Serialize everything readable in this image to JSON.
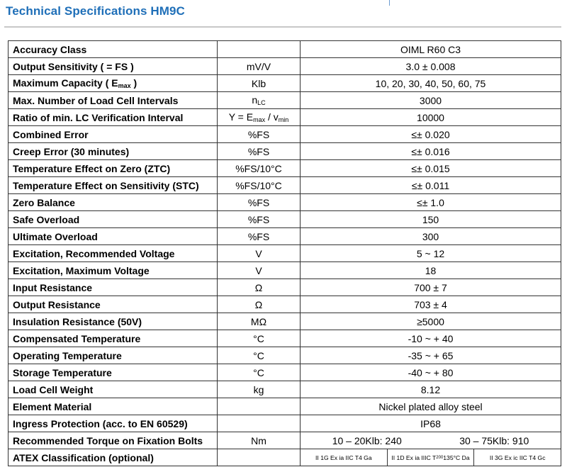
{
  "title": "Technical Specifications HM9C",
  "rows": [
    {
      "label": "Accuracy Class",
      "unit": "",
      "value": "OIML R60 C3"
    },
    {
      "label": "Output Sensitivity ( = FS )",
      "unit": "mV/V",
      "value": "3.0 ± 0.008"
    },
    {
      "label_main": "Maximum Capacity ( E",
      "label_sub": "max",
      "label_tail": " )",
      "unit": "Klb",
      "value": "10, 20, 30, 40, 50, 60, 75"
    },
    {
      "label": "Max. Number of Load Cell Intervals",
      "unit_main": "n",
      "unit_sub": "LC",
      "value": "3000"
    },
    {
      "label": "Ratio of min. LC Verification Interval",
      "unit_a": "Y = E",
      "unit_a_sub": "max",
      "unit_b": " / v",
      "unit_b_sub": "min",
      "value": "10000"
    },
    {
      "label": "Combined Error",
      "unit": "%FS",
      "value": "≤± 0.020"
    },
    {
      "label": "Creep Error (30 minutes)",
      "unit": "%FS",
      "value": "≤± 0.016"
    },
    {
      "label": "Temperature Effect on Zero (ZTC)",
      "unit": "%FS/10°C",
      "value": "≤± 0.015"
    },
    {
      "label": "Temperature Effect on Sensitivity (STC)",
      "unit": "%FS/10°C",
      "value": "≤± 0.011"
    },
    {
      "label": "Zero Balance",
      "unit": "%FS",
      "value": "≤± 1.0"
    },
    {
      "label": "Safe Overload",
      "unit": "%FS",
      "value": "150"
    },
    {
      "label": "Ultimate Overload",
      "unit": "%FS",
      "value": "300"
    },
    {
      "label": "Excitation, Recommended Voltage",
      "unit": "V",
      "value": "5 ~ 12"
    },
    {
      "label": "Excitation, Maximum Voltage",
      "unit": "V",
      "value": "18"
    },
    {
      "label": "Input Resistance",
      "unit": "Ω",
      "value": "700 ± 7"
    },
    {
      "label": "Output Resistance",
      "unit": "Ω",
      "value": "703 ± 4"
    },
    {
      "label": "Insulation Resistance (50V)",
      "unit": "MΩ",
      "value": "≥5000"
    },
    {
      "label": "Compensated Temperature",
      "unit": "°C",
      "value": "-10 ~ + 40"
    },
    {
      "label": "Operating Temperature",
      "unit": "°C",
      "value": "-35 ~ + 65"
    },
    {
      "label": "Storage Temperature",
      "unit": "°C",
      "value": "-40 ~ + 80"
    },
    {
      "label": "Load Cell Weight",
      "unit": "kg",
      "value": "8.12"
    },
    {
      "label": "Element Material",
      "unit": "",
      "value": "Nickel plated alloy steel"
    },
    {
      "label": "Ingress Protection (acc. to EN 60529)",
      "unit": "",
      "value": "IP68"
    },
    {
      "label": "Recommended Torque on Fixation Bolts",
      "unit": "Nm",
      "value_a": "10 – 20Klb: 240",
      "value_b": "30 – 75Klb: 910"
    },
    {
      "label": "ATEX Classification (optional)",
      "unit": "",
      "atex_1": "II 1G Ex ia IIC T4 Ga",
      "atex_2_main": "II 1D Ex ia IIIC T",
      "atex_2_sub": "200",
      "atex_2_tail": " 135°C Da",
      "atex_3": "II 3G Ex ic IIC T4 Gc"
    }
  ]
}
